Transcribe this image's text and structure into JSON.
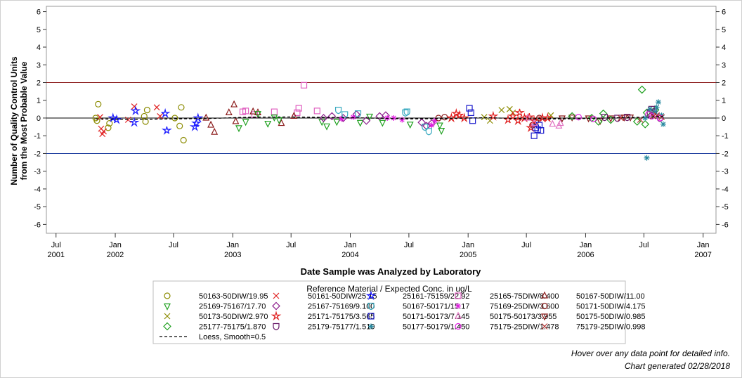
{
  "chart_data": {
    "type": "scatter",
    "xlabel": "Date Sample was Analyzed by Laboratory",
    "ylabel": [
      "Number of Quality Control Units",
      "from the Most Probable Value"
    ],
    "xlim": [
      "2001-06-01",
      "2007-02-10"
    ],
    "ylim": [
      -6.5,
      6.3
    ],
    "yticks": [
      6,
      5,
      4,
      3,
      2,
      1,
      0,
      -1,
      -2,
      -3,
      -4,
      -5,
      -6
    ],
    "xticks": [
      {
        "date": "2001-07-01",
        "line1": "Jul",
        "line2": "2001"
      },
      {
        "date": "2002-01-01",
        "line1": "Jan",
        "line2": "2002"
      },
      {
        "date": "2002-07-01",
        "line1": "Jul",
        "line2": ""
      },
      {
        "date": "2003-01-01",
        "line1": "Jan",
        "line2": "2003"
      },
      {
        "date": "2003-07-01",
        "line1": "Jul",
        "line2": ""
      },
      {
        "date": "2004-01-01",
        "line1": "Jan",
        "line2": "2004"
      },
      {
        "date": "2004-07-01",
        "line1": "Jul",
        "line2": ""
      },
      {
        "date": "2005-01-01",
        "line1": "Jan",
        "line2": "2005"
      },
      {
        "date": "2005-07-01",
        "line1": "Jul",
        "line2": ""
      },
      {
        "date": "2006-01-01",
        "line1": "Jan",
        "line2": "2006"
      },
      {
        "date": "2006-07-01",
        "line1": "Jul",
        "line2": ""
      },
      {
        "date": "2007-01-01",
        "line1": "Jan",
        "line2": "2007"
      }
    ],
    "reference_lines": [
      {
        "y": 2,
        "color": "#8b1a1a"
      },
      {
        "y": 0,
        "color": "#000000"
      },
      {
        "y": -2,
        "color": "#1f3f9f"
      }
    ],
    "legend_title": "Reference Material / Expected Conc. in ug/L",
    "legend_position": "bottom",
    "grid": false,
    "series": [
      {
        "name": "50163-50DIW/19.95",
        "symbol": "circle",
        "color": "#8b8b00",
        "points": [
          [
            "2001-11-01",
            0.0
          ],
          [
            "2001-11-05",
            -0.15
          ],
          [
            "2001-11-09",
            0.78
          ],
          [
            "2001-12-10",
            -0.55
          ],
          [
            "2001-12-14",
            -0.3
          ],
          [
            "2002-04-01",
            0.1
          ],
          [
            "2002-04-05",
            -0.2
          ],
          [
            "2002-04-10",
            0.45
          ],
          [
            "2002-07-05",
            0.0
          ],
          [
            "2002-07-20",
            -0.45
          ],
          [
            "2002-07-25",
            0.6
          ],
          [
            "2002-08-01",
            -1.25
          ]
        ]
      },
      {
        "name": "50161-50DIW/25.15",
        "symbol": "x",
        "color": "#e02020",
        "points": [
          [
            "2001-11-15",
            0.05
          ],
          [
            "2001-11-18",
            -0.6
          ],
          [
            "2001-11-22",
            -0.9
          ],
          [
            "2001-11-26",
            -0.75
          ],
          [
            "2002-02-10",
            -0.1
          ],
          [
            "2002-03-01",
            0.65
          ],
          [
            "2002-05-10",
            0.6
          ],
          [
            "2002-05-20",
            0.1
          ]
        ]
      },
      {
        "name": "25161-75159/22.92",
        "symbol": "star",
        "color": "#1a1aff",
        "points": [
          [
            "2001-12-25",
            0.0
          ],
          [
            "2002-01-05",
            -0.1
          ],
          [
            "2002-03-01",
            -0.25
          ],
          [
            "2002-03-05",
            0.4
          ],
          [
            "2002-06-05",
            0.25
          ],
          [
            "2002-06-10",
            -0.7
          ],
          [
            "2002-09-05",
            -0.5
          ],
          [
            "2002-09-10",
            -0.3
          ],
          [
            "2002-09-15",
            0.0
          ]
        ]
      },
      {
        "name": "25165-75DIW/8.400",
        "symbol": "square",
        "color": "#e060c0",
        "points": [
          [
            "2003-02-01",
            0.35
          ],
          [
            "2003-02-10",
            0.4
          ],
          [
            "2003-03-10",
            0.2
          ],
          [
            "2003-05-10",
            0.35
          ],
          [
            "2003-07-20",
            0.3
          ],
          [
            "2003-07-25",
            0.55
          ],
          [
            "2003-08-10",
            1.85
          ],
          [
            "2003-09-20",
            0.4
          ]
        ]
      },
      {
        "name": "50167-50DIW/11.00",
        "symbol": "triangle",
        "color": "#8b1a1a",
        "points": [
          [
            "2002-10-10",
            0.0
          ],
          [
            "2002-10-25",
            -0.4
          ],
          [
            "2002-11-05",
            -0.8
          ],
          [
            "2002-12-20",
            0.3
          ],
          [
            "2003-01-05",
            0.75
          ],
          [
            "2003-01-10",
            -0.2
          ],
          [
            "2003-03-05",
            0.35
          ],
          [
            "2003-03-20",
            0.3
          ],
          [
            "2003-06-01",
            -0.3
          ],
          [
            "2003-07-10",
            0.1
          ]
        ]
      },
      {
        "name": "25169-75167/17.70",
        "symbol": "triangle-down",
        "color": "#1fa01f",
        "points": [
          [
            "2003-01-20",
            -0.55
          ],
          [
            "2003-02-10",
            -0.2
          ],
          [
            "2003-03-20",
            0.25
          ],
          [
            "2003-04-20",
            -0.3
          ],
          [
            "2003-05-10",
            0.05
          ],
          [
            "2003-05-25",
            -0.1
          ],
          [
            "2003-10-05",
            -0.2
          ],
          [
            "2003-10-20",
            -0.45
          ],
          [
            "2003-11-20",
            -0.2
          ],
          [
            "2004-02-01",
            -0.25
          ],
          [
            "2004-03-01",
            0.1
          ],
          [
            "2004-04-10",
            -0.25
          ],
          [
            "2004-07-05",
            -0.35
          ],
          [
            "2004-10-05",
            -0.4
          ],
          [
            "2004-10-10",
            -0.7
          ]
        ]
      },
      {
        "name": "25167-75169/9.100",
        "symbol": "diamond",
        "color": "#8b1a8b",
        "points": [
          [
            "2003-10-10",
            0.0
          ],
          [
            "2003-11-05",
            0.1
          ],
          [
            "2003-12-10",
            0.0
          ],
          [
            "2004-01-20",
            0.2
          ],
          [
            "2004-02-20",
            -0.15
          ],
          [
            "2004-04-01",
            0.1
          ],
          [
            "2004-04-20",
            0.15
          ],
          [
            "2004-08-10",
            -0.25
          ],
          [
            "2004-08-25",
            -0.45
          ],
          [
            "2004-09-10",
            -0.3
          ]
        ]
      },
      {
        "name": "50167-50171/15.17",
        "symbol": "shield",
        "color": "#3aaac0",
        "points": [
          [
            "2003-11-25",
            0.45
          ],
          [
            "2003-12-15",
            0.2
          ],
          [
            "2004-01-25",
            0.25
          ],
          [
            "2004-06-20",
            0.3
          ],
          [
            "2004-06-25",
            0.35
          ],
          [
            "2004-08-20",
            -0.5
          ],
          [
            "2004-09-01",
            -0.75
          ]
        ]
      },
      {
        "name": "75169-25DIW/3.600",
        "symbol": "asterisk",
        "color": "#e020e0",
        "points": [
          [
            "2003-12-05",
            -0.05
          ],
          [
            "2004-01-10",
            0.05
          ],
          [
            "2004-04-25",
            0.0
          ],
          [
            "2004-05-15",
            0.0
          ],
          [
            "2004-06-10",
            -0.1
          ],
          [
            "2004-09-10",
            -0.4
          ],
          [
            "2004-09-20",
            -0.15
          ]
        ]
      },
      {
        "name": "50171-50DIW/4.175",
        "symbol": "circle",
        "color": "#8b1a1a",
        "points": [
          [
            "2004-10-01",
            0.0
          ],
          [
            "2004-10-20",
            0.05
          ],
          [
            "2005-07-20",
            -0.4
          ],
          [
            "2005-07-30",
            -0.2
          ],
          [
            "2005-08-10",
            0.0
          ]
        ]
      },
      {
        "name": "50173-50DIW/2.970",
        "symbol": "x",
        "color": "#8b8b00",
        "points": [
          [
            "2005-02-20",
            0.05
          ],
          [
            "2005-03-10",
            -0.15
          ],
          [
            "2005-04-15",
            0.45
          ],
          [
            "2005-05-10",
            0.5
          ],
          [
            "2005-05-20",
            0.3
          ],
          [
            "2005-09-15",
            0.15
          ]
        ]
      },
      {
        "name": "25171-75175/3.565",
        "symbol": "star",
        "color": "#e02020",
        "points": [
          [
            "2004-11-10",
            0.0
          ],
          [
            "2004-11-25",
            0.25
          ],
          [
            "2004-12-05",
            0.15
          ],
          [
            "2004-12-20",
            0.0
          ],
          [
            "2005-03-20",
            0.1
          ],
          [
            "2005-05-05",
            -0.1
          ],
          [
            "2005-05-20",
            0.1
          ],
          [
            "2005-06-05",
            -0.15
          ],
          [
            "2005-06-10",
            0.3
          ],
          [
            "2005-06-25",
            0.0
          ],
          [
            "2005-07-10",
            0.05
          ],
          [
            "2005-07-15",
            -0.55
          ],
          [
            "2005-07-25",
            -0.15
          ],
          [
            "2005-08-20",
            0.0
          ],
          [
            "2005-09-05",
            0.0
          ]
        ]
      },
      {
        "name": "50171-50173/7.145",
        "symbol": "square",
        "color": "#1a1acc",
        "points": [
          [
            "2005-01-05",
            0.55
          ],
          [
            "2005-01-10",
            0.3
          ],
          [
            "2005-01-15",
            -0.15
          ],
          [
            "2005-07-25",
            -1.0
          ],
          [
            "2005-07-30",
            -0.55
          ],
          [
            "2005-08-05",
            -0.65
          ],
          [
            "2005-08-10",
            -0.4
          ],
          [
            "2005-08-15",
            -0.7
          ]
        ]
      },
      {
        "name": "50175-50173/3.955",
        "symbol": "triangle",
        "color": "#e070c0",
        "points": [
          [
            "2005-07-05",
            0.0
          ],
          [
            "2005-07-25",
            -0.3
          ],
          [
            "2005-09-20",
            -0.35
          ],
          [
            "2005-10-10",
            -0.45
          ],
          [
            "2005-10-15",
            -0.3
          ]
        ]
      },
      {
        "name": "50175-50DIW/0.985",
        "symbol": "triangle-down",
        "color": "#8b1a1a",
        "points": [
          [
            "2005-10-20",
            0.0
          ],
          [
            "2005-11-20",
            0.05
          ],
          [
            "2006-01-10",
            0.0
          ],
          [
            "2006-02-15",
            -0.15
          ],
          [
            "2006-03-20",
            0.0
          ],
          [
            "2006-05-01",
            0.05
          ],
          [
            "2006-05-20",
            0.05
          ]
        ]
      },
      {
        "name": "25177-75175/1.870",
        "symbol": "diamond",
        "color": "#1fa01f",
        "points": [
          [
            "2005-11-20",
            0.1
          ],
          [
            "2006-01-20",
            0.0
          ],
          [
            "2006-02-10",
            -0.2
          ],
          [
            "2006-02-25",
            0.25
          ],
          [
            "2006-03-20",
            -0.1
          ],
          [
            "2006-06-10",
            -0.2
          ],
          [
            "2006-06-25",
            1.6
          ],
          [
            "2006-07-05",
            -0.35
          ],
          [
            "2006-07-10",
            0.3
          ],
          [
            "2006-08-05",
            0.45
          ]
        ]
      },
      {
        "name": "25179-75177/1.510",
        "symbol": "shield",
        "color": "#6a1a6a",
        "points": [
          [
            "2006-03-01",
            0.05
          ],
          [
            "2006-04-10",
            0.0
          ],
          [
            "2006-05-10",
            0.05
          ],
          [
            "2006-07-20",
            0.3
          ],
          [
            "2006-07-25",
            0.5
          ],
          [
            "2006-08-01",
            0.35
          ],
          [
            "2006-08-20",
            0.0
          ]
        ]
      },
      {
        "name": "50177-50179/1.450",
        "symbol": "asterisk",
        "color": "#2a8aa0",
        "points": [
          [
            "2006-07-05",
            0.0
          ],
          [
            "2006-07-10",
            -2.25
          ],
          [
            "2006-07-20",
            0.5
          ],
          [
            "2006-08-05",
            0.35
          ],
          [
            "2006-08-10",
            0.6
          ],
          [
            "2006-08-15",
            0.9
          ],
          [
            "2006-08-25",
            0.15
          ],
          [
            "2006-08-30",
            -0.35
          ]
        ]
      },
      {
        "name": "75175-25DIW/1.478",
        "symbol": "circle",
        "color": "#e020e0",
        "points": [
          [
            "2005-12-10",
            0.05
          ],
          [
            "2006-01-25",
            -0.05
          ],
          [
            "2006-07-15",
            0.2
          ],
          [
            "2006-07-25",
            0.1
          ],
          [
            "2006-08-20",
            0.0
          ]
        ]
      },
      {
        "name": "75179-25DIW/0.998",
        "symbol": "x",
        "color": "#b03030",
        "points": [
          [
            "2006-04-20",
            0.0
          ],
          [
            "2006-06-20",
            -0.1
          ],
          [
            "2006-07-30",
            0.1
          ],
          [
            "2006-08-10",
            0.15
          ],
          [
            "2006-08-25",
            0.05
          ]
        ]
      }
    ],
    "loess": {
      "name": "Loess, Smooth=0.5",
      "style": "dashed",
      "points": [
        [
          "2001-11-01",
          -0.05
        ],
        [
          "2002-03-01",
          -0.08
        ],
        [
          "2002-07-01",
          -0.05
        ],
        [
          "2002-11-01",
          -0.02
        ],
        [
          "2003-03-01",
          0.05
        ],
        [
          "2003-07-01",
          0.06
        ],
        [
          "2003-11-01",
          0.03
        ],
        [
          "2004-03-01",
          0.0
        ],
        [
          "2004-07-01",
          -0.05
        ],
        [
          "2004-11-01",
          -0.03
        ],
        [
          "2005-03-01",
          0.02
        ],
        [
          "2005-07-01",
          -0.05
        ],
        [
          "2005-11-01",
          -0.05
        ],
        [
          "2006-03-01",
          0.0
        ],
        [
          "2006-07-01",
          0.05
        ],
        [
          "2006-08-30",
          0.1
        ]
      ]
    }
  },
  "footer": {
    "hover_note": "Hover over any data point for detailed info.",
    "generated": "Chart generated 02/28/2018"
  }
}
